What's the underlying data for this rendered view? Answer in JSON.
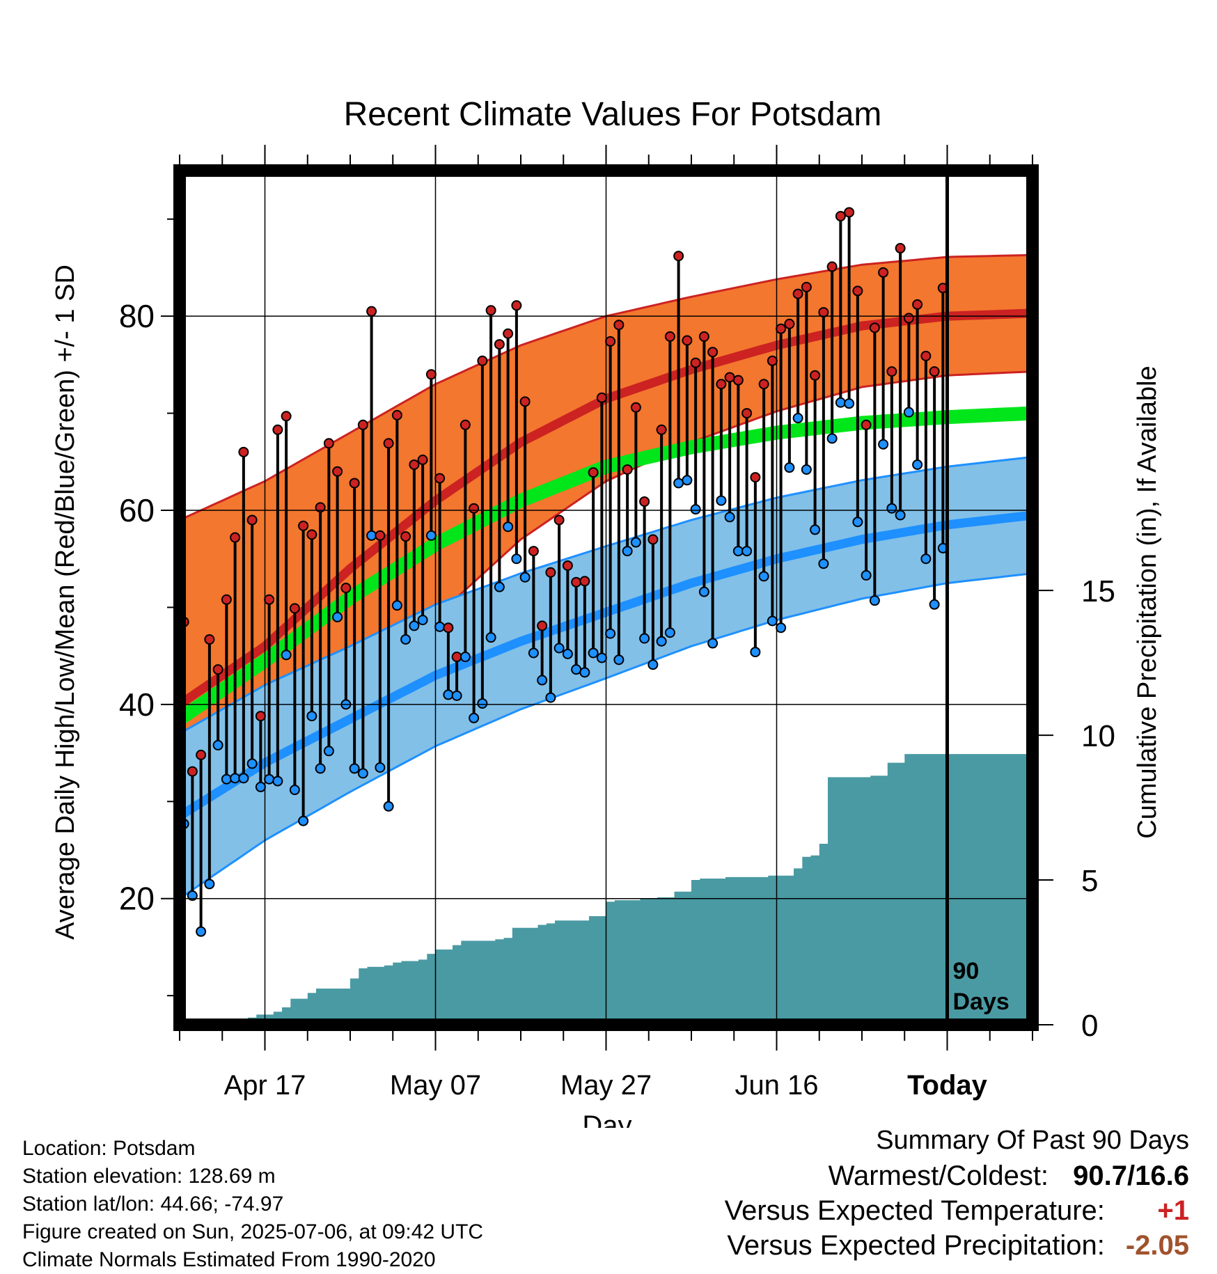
{
  "chart_data": {
    "type": "line",
    "title": "Recent Climate Values For Potsdam",
    "xlabel": "Day",
    "ylabel": "Average Daily High/Low/Mean (Red/Blue/Green) +/- 1 SD",
    "y2label": "Cumulative Precipitation (in), If Available",
    "x_ticks": [
      "Apr 17",
      "May 07",
      "May 27",
      "Jun 16",
      "Today"
    ],
    "x_tick_days": [
      10,
      30,
      50,
      70,
      90
    ],
    "xlim": [
      0,
      100
    ],
    "ylim": [
      7,
      95
    ],
    "y_ticks": [
      20,
      40,
      60,
      80
    ],
    "y2lim": [
      0,
      29.5
    ],
    "y2_ticks": [
      0,
      5,
      10,
      15
    ],
    "today_marker_label": [
      "90",
      "Days"
    ],
    "normals": {
      "days": [
        0,
        10,
        20,
        30,
        40,
        50,
        60,
        70,
        80,
        90,
        100
      ],
      "high_mean": [
        40,
        46,
        54,
        61,
        67,
        71.5,
        74.5,
        77,
        79,
        80,
        80.3
      ],
      "high_sd": [
        19,
        17,
        14,
        12,
        10,
        8.5,
        7.5,
        6.8,
        6.3,
        6.1,
        6
      ],
      "mean": [
        38.5,
        44.5,
        51,
        56.5,
        61,
        64.5,
        66.5,
        68,
        69,
        69.6,
        70
      ],
      "low_mean": [
        28.5,
        34,
        38.5,
        43,
        46.5,
        49.5,
        52.5,
        55,
        57,
        58.5,
        59.5
      ],
      "low_sd": [
        8.5,
        8,
        7.5,
        7.3,
        7,
        6.8,
        6.5,
        6.3,
        6.1,
        6,
        6
      ]
    },
    "series": [
      {
        "name": "High",
        "values": [
          48.5,
          33.1,
          34.8,
          46.7,
          43.6,
          50.8,
          57.2,
          66,
          59,
          38.8,
          50.8,
          68.3,
          69.7,
          49.9,
          58.4,
          57.5,
          60.3,
          66.9,
          64,
          52,
          62.8,
          68.8,
          80.5,
          57.4,
          66.9,
          69.8,
          57.3,
          64.7,
          65.2,
          74,
          63.3,
          47.9,
          44.9,
          68.8,
          60.2,
          75.4,
          80.6,
          77.1,
          78.2,
          81.1,
          71.2,
          55.8,
          48.1,
          53.6,
          59,
          54.3,
          52.6,
          52.7,
          63.9,
          71.6,
          77.4,
          79.1,
          64.2,
          70.6,
          60.9,
          57,
          68.3,
          77.9,
          86.2,
          77.5,
          75.2,
          77.9,
          76.3,
          73,
          73.7,
          73.4,
          70,
          63.4,
          73,
          75.4,
          78.7,
          79.2,
          82.3,
          83,
          73.9,
          80.4,
          85.1,
          90.3,
          90.7,
          82.6,
          68.8,
          78.8,
          84.5,
          74.3,
          87,
          79.8,
          81.2,
          75.9,
          74.3,
          82.9
        ]
      },
      {
        "name": "Low",
        "values": [
          27.7,
          20.3,
          16.6,
          21.5,
          35.8,
          32.3,
          32.4,
          32.4,
          33.9,
          31.5,
          32.3,
          32.1,
          45.1,
          31.2,
          28,
          38.8,
          33.4,
          35.2,
          49,
          40,
          33.4,
          32.9,
          57.4,
          33.5,
          29.5,
          50.2,
          46.7,
          48.1,
          48.7,
          57.4,
          48,
          41,
          40.9,
          44.9,
          38.6,
          40.1,
          46.9,
          52.1,
          58.3,
          55,
          53.1,
          45.3,
          42.5,
          40.7,
          45.8,
          45.2,
          43.6,
          43.3,
          45.3,
          44.8,
          47.3,
          44.6,
          55.8,
          56.7,
          46.8,
          44.1,
          46.5,
          47.4,
          62.8,
          63.1,
          60.1,
          51.6,
          46.3,
          61,
          59.3,
          55.8,
          55.8,
          45.4,
          53.2,
          48.6,
          47.9,
          64.4,
          69.5,
          64.2,
          58,
          54.5,
          67.4,
          71.1,
          71,
          58.8,
          53.3,
          50.7,
          66.8,
          60.2,
          59.5,
          70.1,
          64.7,
          55,
          50.3,
          56.1
        ]
      }
    ],
    "precipitation": {
      "days": [
        0,
        6,
        7,
        8,
        9,
        10,
        11,
        12,
        13,
        14,
        15,
        16,
        17,
        18,
        19,
        20,
        21,
        22,
        23,
        24,
        25,
        26,
        27,
        28,
        29,
        30,
        31,
        32,
        33,
        34,
        35,
        36,
        37,
        38,
        39,
        40,
        41,
        42,
        43,
        44,
        45,
        46,
        47,
        48,
        49,
        50,
        51,
        52,
        53,
        54,
        55,
        56,
        57,
        58,
        59,
        60,
        61,
        62,
        63,
        64,
        65,
        66,
        67,
        68,
        69,
        70,
        71,
        72,
        73,
        74,
        75,
        76,
        77,
        78,
        79,
        80,
        81,
        82,
        83,
        84,
        85,
        86,
        87,
        88,
        89,
        90,
        99.5
      ],
      "values": [
        0,
        0,
        0.15,
        0.25,
        0.35,
        0.35,
        0.45,
        0.6,
        0.9,
        0.9,
        1.1,
        1.25,
        1.25,
        1.25,
        1.25,
        1.6,
        1.95,
        2,
        2,
        2.05,
        2.15,
        2.2,
        2.2,
        2.25,
        2.45,
        2.6,
        2.6,
        2.75,
        2.9,
        2.9,
        2.9,
        2.9,
        2.95,
        3,
        3.35,
        3.35,
        3.35,
        3.45,
        3.5,
        3.6,
        3.6,
        3.6,
        3.6,
        3.75,
        3.75,
        4.25,
        4.3,
        4.3,
        4.3,
        4.35,
        4.35,
        4.4,
        4.4,
        4.6,
        4.6,
        5,
        5.05,
        5.05,
        5.05,
        5.1,
        5.1,
        5.1,
        5.1,
        5.1,
        5.15,
        5.15,
        5.15,
        5.4,
        5.8,
        5.85,
        6.25,
        8.55,
        8.55,
        8.55,
        8.55,
        8.55,
        8.6,
        8.6,
        9.05,
        9.05,
        9.35,
        9.35,
        9.35,
        9.35,
        9.35,
        9.35,
        9.35
      ]
    },
    "colors": {
      "high": "#cc2222",
      "high_band": "#f3772e",
      "mean": "#00e61a",
      "low": "#1e90ff",
      "low_band": "#82c0e8",
      "precip": "#4a9aa3",
      "frame": "#000000"
    }
  },
  "footer": {
    "location": "Location: Potsdam",
    "elevation": "Station elevation: 128.69 m",
    "latlon": "Station lat/lon: 44.66; -74.97",
    "created": "Figure created on Sun, 2025-07-06, at 09:42 UTC",
    "normals": "Climate Normals Estimated From 1990-2020"
  },
  "summary": {
    "title": "Summary Of Past 90 Days",
    "warmest_coldest_label": "Warmest/Coldest:",
    "warmest_coldest_value": "90.7/16.6",
    "temp_label": "Versus Expected Temperature:",
    "temp_value": "+1",
    "temp_color": "#cc2222",
    "precip_label": "Versus Expected Precipitation:",
    "precip_value": "-2.05",
    "precip_color": "#a0522d"
  }
}
